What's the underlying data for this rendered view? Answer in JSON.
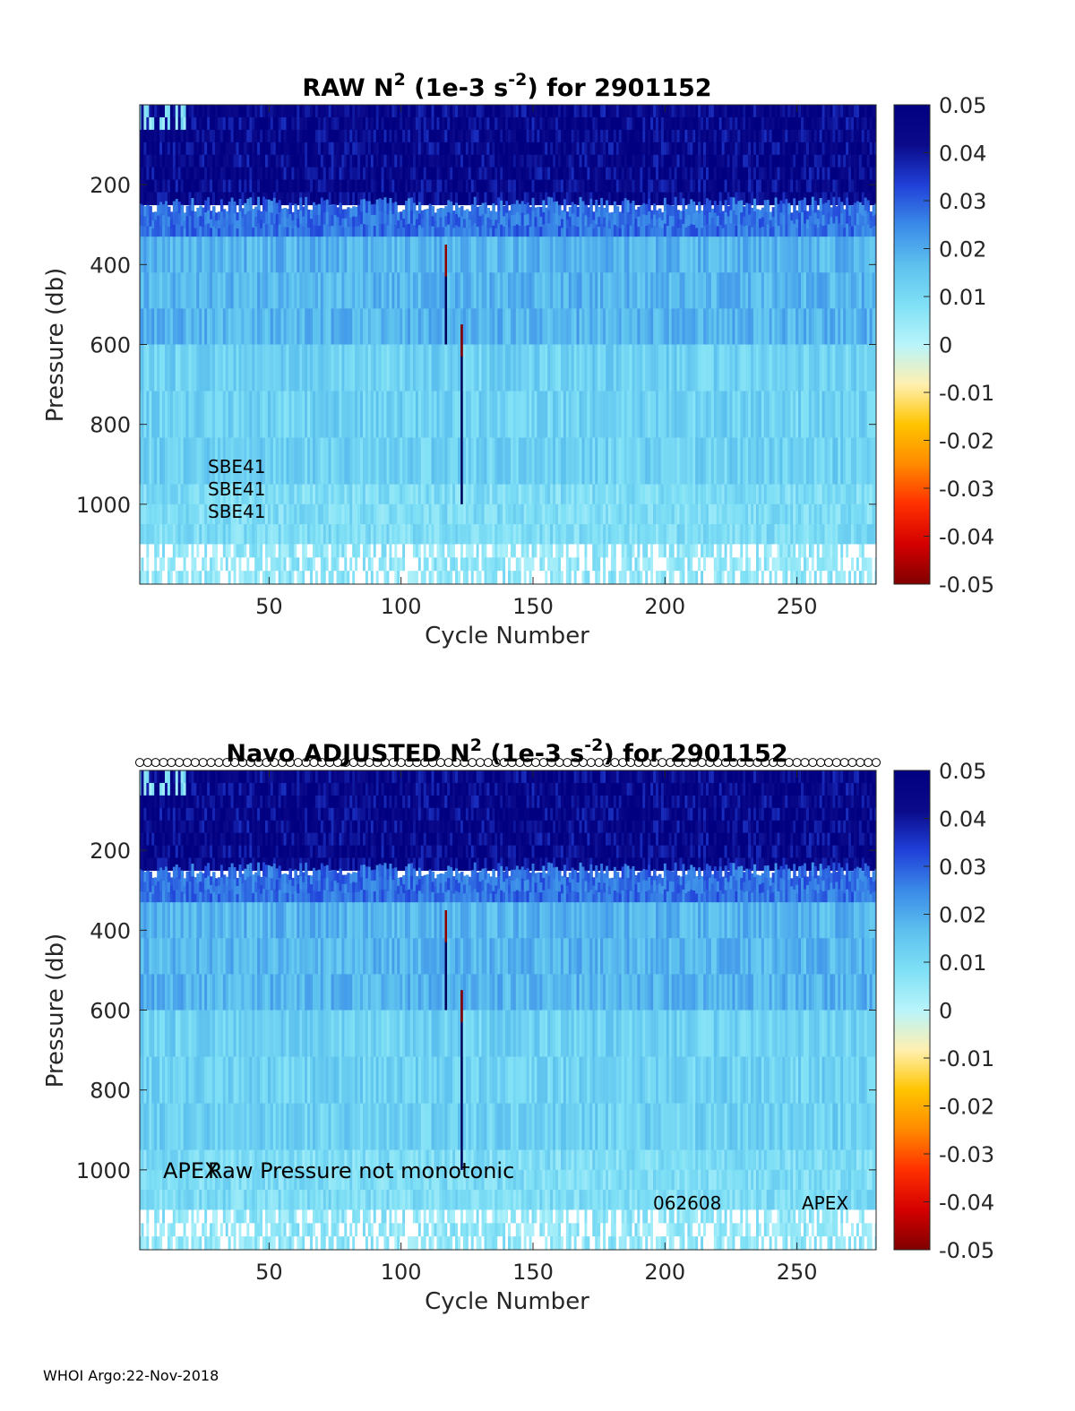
{
  "colors": {
    "deep_blue": "#0a0a8a",
    "mid_blue": "#3a64e0",
    "light_blue": "#7fd6f0",
    "pale_cyan": "#b0eef8",
    "line_navy": "#00005a",
    "line_dark_red": "#8b0000"
  },
  "colormap": [
    "#800000",
    "#d40000",
    "#ff3000",
    "#ff8a00",
    "#ffc400",
    "#fff0b0",
    "#b8f4fb",
    "#7fe0f5",
    "#5cc0ee",
    "#3a8ae8",
    "#2040d8",
    "#0a0a8a",
    "#000080"
  ],
  "footer": "WHOI Argo:22-Nov-2018",
  "chart_data": [
    {
      "type": "heatmap",
      "title_prefix": "RAW N",
      "title_sup1": "2",
      "title_mid": " (1e-3 s",
      "title_sup2": "-2",
      "title_suffix": ") for 2901152",
      "xlabel": "Cycle Number",
      "ylabel": "Pressure (db)",
      "xlim": [
        1,
        280
      ],
      "ylim": [
        0,
        1200
      ],
      "y_reversed": true,
      "xticks": [
        50,
        100,
        150,
        200,
        250
      ],
      "xtick_labels": [
        "50",
        "100",
        "150",
        "200",
        "250"
      ],
      "yticks": [
        200,
        400,
        600,
        800,
        1000
      ],
      "ytick_labels": [
        "200",
        "400",
        "600",
        "800",
        "1000"
      ],
      "clim": [
        -0.05,
        0.05
      ],
      "cticks": [
        0.05,
        0.04,
        0.03,
        0.02,
        0.01,
        0,
        -0.01,
        -0.02,
        -0.03,
        -0.04,
        -0.05
      ],
      "ctick_labels": [
        "0.05",
        "0.04",
        "0.03",
        "0.02",
        "0.01",
        "0",
        "-0.01",
        "-0.02",
        "-0.03",
        "-0.04",
        "-0.05"
      ],
      "layers": [
        {
          "p_top": 0,
          "p_bottom": 250,
          "level": 0.045
        },
        {
          "p_top": 250,
          "p_bottom": 330,
          "level": 0.028
        },
        {
          "p_top": 330,
          "p_bottom": 600,
          "level": 0.018
        },
        {
          "p_top": 600,
          "p_bottom": 950,
          "level": 0.012
        },
        {
          "p_top": 950,
          "p_bottom": 1100,
          "level": 0.009
        },
        {
          "p_top": 1100,
          "p_bottom": 1200,
          "level": 0.006
        }
      ],
      "spike_profiles": [
        {
          "cycle": 117,
          "p_top": 350,
          "p_bottom": 600
        },
        {
          "cycle": 123,
          "p_top": 550,
          "p_bottom": 1000
        }
      ],
      "annotations": [
        "SBE41",
        "SBE41",
        "SBE41"
      ]
    },
    {
      "type": "heatmap",
      "title_prefix": "Navo  ADJUSTED N",
      "title_sup1": "2",
      "title_mid": " (1e-3 s",
      "title_sup2": "-2",
      "title_suffix": ") for 2901152",
      "xlabel": "Cycle Number",
      "ylabel": "Pressure (db)",
      "xlim": [
        1,
        280
      ],
      "ylim": [
        0,
        1200
      ],
      "y_reversed": true,
      "xticks": [
        50,
        100,
        150,
        200,
        250
      ],
      "xtick_labels": [
        "50",
        "100",
        "150",
        "200",
        "250"
      ],
      "yticks": [
        200,
        400,
        600,
        800,
        1000
      ],
      "ytick_labels": [
        "200",
        "400",
        "600",
        "800",
        "1000"
      ],
      "clim": [
        -0.05,
        0.05
      ],
      "cticks": [
        0.05,
        0.04,
        0.03,
        0.02,
        0.01,
        0,
        -0.01,
        -0.02,
        -0.03,
        -0.04,
        -0.05
      ],
      "ctick_labels": [
        "0.05",
        "0.04",
        "0.03",
        "0.02",
        "0.01",
        "0",
        "-0.01",
        "-0.02",
        "-0.03",
        "-0.04",
        "-0.05"
      ],
      "layers": [
        {
          "p_top": 0,
          "p_bottom": 250,
          "level": 0.045
        },
        {
          "p_top": 250,
          "p_bottom": 330,
          "level": 0.028
        },
        {
          "p_top": 330,
          "p_bottom": 600,
          "level": 0.018
        },
        {
          "p_top": 600,
          "p_bottom": 950,
          "level": 0.012
        },
        {
          "p_top": 950,
          "p_bottom": 1100,
          "level": 0.009
        },
        {
          "p_top": 1100,
          "p_bottom": 1200,
          "level": 0.006
        }
      ],
      "spike_profiles": [
        {
          "cycle": 117,
          "p_top": 350,
          "p_bottom": 600
        },
        {
          "cycle": 123,
          "p_top": 550,
          "p_bottom": 1000
        }
      ],
      "marker_row": {
        "pressure": -20,
        "from_cycle": 1,
        "to_cycle": 280
      },
      "annotation_main_a": "APEX",
      "annotation_main_b": "Raw Pressure not monotonic",
      "annotation_date": "062608",
      "annotation_model": "APEX"
    }
  ]
}
